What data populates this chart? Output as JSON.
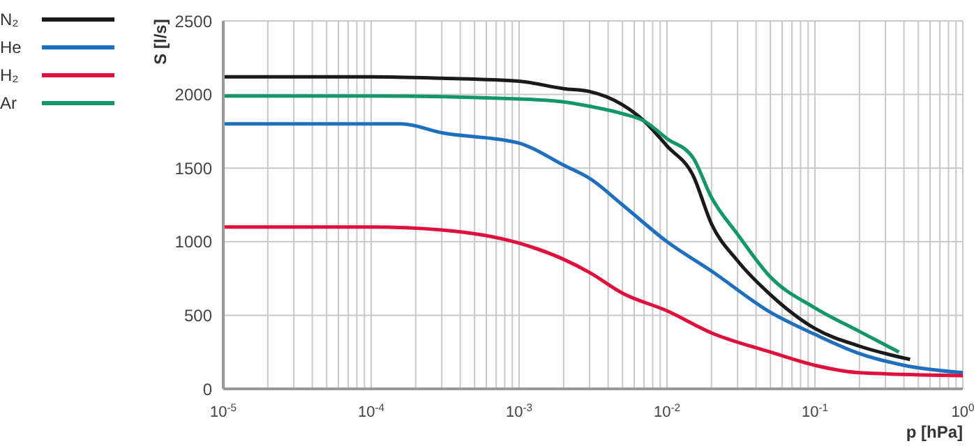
{
  "chart_data": {
    "type": "line",
    "xlabel": "p [hPa]",
    "ylabel": "S [l/s]",
    "log": "x",
    "grid": true,
    "legend": "top left",
    "marker": "none",
    "line_style": "solid",
    "xlim": [
      1e-05,
      1
    ],
    "ylim": [
      0,
      2500
    ],
    "yticks": [
      0,
      500,
      1000,
      1500,
      2000,
      2500
    ],
    "xticks": [
      {
        "value": 1e-05,
        "label": "10$^{-5}$"
      },
      {
        "value": 2e-05,
        "label": null
      },
      {
        "value": 3e-05,
        "label": null
      },
      {
        "value": 4e-05,
        "label": null
      },
      {
        "value": 5e-05,
        "label": null
      },
      {
        "value": 6e-05,
        "label": null
      },
      {
        "value": 7e-05,
        "label": null
      },
      {
        "value": 8e-05,
        "label": null
      },
      {
        "value": 9e-05,
        "label": null
      },
      {
        "value": 0.0001,
        "label": "10$^{-4}$"
      },
      {
        "value": 0.0002,
        "label": null
      },
      {
        "value": 0.0003,
        "label": null
      },
      {
        "value": 0.0004,
        "label": null
      },
      {
        "value": 0.0005,
        "label": null
      },
      {
        "value": 0.0006,
        "label": null
      },
      {
        "value": 0.0007,
        "label": null
      },
      {
        "value": 0.0008,
        "label": null
      },
      {
        "value": 0.0009,
        "label": null
      },
      {
        "value": 0.001,
        "label": "10$^{-3}$"
      },
      {
        "value": 0.002,
        "label": null
      },
      {
        "value": 0.003,
        "label": null
      },
      {
        "value": 0.004,
        "label": null
      },
      {
        "value": 0.005,
        "label": null
      },
      {
        "value": 0.006,
        "label": null
      },
      {
        "value": 0.007,
        "label": null
      },
      {
        "value": 0.008,
        "label": null
      },
      {
        "value": 0.009,
        "label": null
      },
      {
        "value": 0.01,
        "label": "10$^{-2}$"
      },
      {
        "value": 0.02,
        "label": null
      },
      {
        "value": 0.03,
        "label": null
      },
      {
        "value": 0.04,
        "label": null
      },
      {
        "value": 0.05,
        "label": null
      },
      {
        "value": 0.06,
        "label": null
      },
      {
        "value": 0.07,
        "label": null
      },
      {
        "value": 0.08,
        "label": null
      },
      {
        "value": 0.09,
        "label": null
      },
      {
        "value": 0.1,
        "label": "10$^{-1}$"
      },
      {
        "value": 0.2,
        "label": null
      },
      {
        "value": 0.3,
        "label": null
      },
      {
        "value": 0.4,
        "label": null
      },
      {
        "value": 0.5,
        "label": null
      },
      {
        "value": 0.6,
        "label": null
      },
      {
        "value": 0.7,
        "label": null
      },
      {
        "value": 0.8,
        "label": null
      },
      {
        "value": 0.9,
        "label": null
      },
      {
        "value": 1,
        "label": "10$^{0}$"
      }
    ],
    "series": [
      {
        "name": "N₂",
        "color": "#1a1a1a",
        "x": [
          1e-05,
          0.0001,
          0.0003,
          0.001,
          0.002,
          0.003,
          0.005,
          0.007,
          0.01,
          0.015,
          0.02,
          0.03,
          0.05,
          0.1,
          0.2,
          0.44
        ],
        "values": [
          2120,
          2120,
          2110,
          2090,
          2040,
          2020,
          1930,
          1820,
          1650,
          1450,
          1120,
          870,
          640,
          410,
          290,
          200
        ]
      },
      {
        "name": "He",
        "color": "#1f6fbf",
        "x": [
          1e-05,
          0.0001,
          0.00016,
          0.0003,
          0.001,
          0.002,
          0.003,
          0.005,
          0.01,
          0.02,
          0.05,
          0.1,
          0.2,
          0.4,
          1
        ],
        "values": [
          1800,
          1800,
          1800,
          1740,
          1670,
          1520,
          1430,
          1250,
          1000,
          800,
          520,
          370,
          240,
          160,
          110
        ]
      },
      {
        "name": "H₂",
        "color": "#e0103c",
        "x": [
          1e-05,
          0.0001,
          0.0003,
          0.001,
          0.002,
          0.003,
          0.005,
          0.01,
          0.02,
          0.05,
          0.1,
          0.2,
          1
        ],
        "values": [
          1100,
          1100,
          1080,
          990,
          880,
          790,
          650,
          530,
          380,
          250,
          160,
          110,
          90
        ]
      },
      {
        "name": "Ar",
        "color": "#13976a",
        "x": [
          1e-05,
          0.0001,
          0.001,
          0.002,
          0.003,
          0.005,
          0.007,
          0.01,
          0.015,
          0.02,
          0.03,
          0.05,
          0.1,
          0.2,
          0.37
        ],
        "values": [
          1990,
          1990,
          1970,
          1950,
          1920,
          1870,
          1820,
          1700,
          1570,
          1300,
          1050,
          760,
          550,
          390,
          250
        ]
      }
    ]
  }
}
